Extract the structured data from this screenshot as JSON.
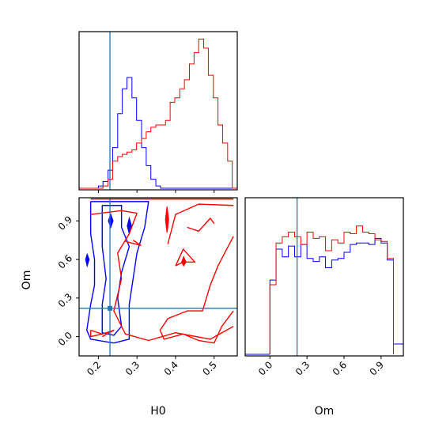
{
  "chart_data": {
    "type": "corner",
    "truth": {
      "H0": 0.23,
      "Om": 0.22
    },
    "series_colors": [
      "#0000ff",
      "#ff0000"
    ],
    "truth_color": "#1f77b4",
    "panels": [
      {
        "id": "hist_H0",
        "type": "step-histogram",
        "xlim": [
          0.15,
          0.56
        ],
        "x_ticks": [
          0.2,
          0.3,
          0.4,
          0.5
        ],
        "x_tick_labels_shown": false,
        "y_ticks_shown": false,
        "bin_edges": [
          0.15,
          0.163,
          0.175,
          0.188,
          0.2,
          0.212,
          0.225,
          0.237,
          0.25,
          0.262,
          0.274,
          0.287,
          0.299,
          0.312,
          0.324,
          0.336,
          0.349,
          0.361,
          0.374,
          0.386,
          0.398,
          0.411,
          0.423,
          0.436,
          0.448,
          0.46,
          0.473,
          0.485,
          0.498,
          0.51,
          0.522,
          0.535,
          0.547,
          0.56
        ],
        "series": [
          {
            "color": "#0000ff",
            "counts": [
              0,
              0,
              0,
              0,
              1,
              3,
              8,
              18,
              33,
              44,
              49,
              40,
              30,
              18,
              10,
              4,
              1,
              0,
              0,
              0,
              0,
              0,
              0,
              0,
              0,
              0,
              0,
              0,
              0,
              0,
              0,
              0,
              0
            ]
          },
          {
            "color": "#ff0000",
            "counts": [
              0,
              0,
              0,
              0,
              0,
              1,
              4,
              12,
              14,
              15,
              16,
              17,
              20,
              22,
              25,
              27,
              28,
              28,
              30,
              38,
              40,
              44,
              48,
              55,
              60,
              66,
              62,
              50,
              40,
              28,
              20,
              12,
              0
            ]
          }
        ]
      },
      {
        "id": "contour_H0_Om",
        "type": "contour",
        "xlabel": "H0",
        "ylabel": "Om",
        "xlim": [
          0.15,
          0.56
        ],
        "ylim": [
          -0.15,
          1.08
        ],
        "x_ticks": [
          0.2,
          0.3,
          0.4,
          0.5
        ],
        "x_tick_labels": [
          "0.2",
          "0.3",
          "0.4",
          "0.5"
        ],
        "y_ticks": [
          0.0,
          0.3,
          0.6,
          0.9
        ],
        "y_tick_labels": [
          "0.0",
          "0.3",
          "0.6",
          "0.9"
        ],
        "series": [
          {
            "color": "#0000ff",
            "contours": [
              [
                [
                  0.18,
                  1.05
                ],
                [
                  0.33,
                  1.05
                ],
                [
                  0.32,
                  0.85
                ],
                [
                  0.3,
                  0.65
                ],
                [
                  0.29,
                  0.45
                ],
                [
                  0.28,
                  0.25
                ],
                [
                  0.28,
                  -0.02
                ],
                [
                  0.24,
                  -0.05
                ],
                [
                  0.18,
                  -0.02
                ],
                [
                  0.17,
                  0.05
                ],
                [
                  0.18,
                  0.25
                ],
                [
                  0.19,
                  0.4
                ],
                [
                  0.19,
                  0.6
                ],
                [
                  0.18,
                  0.8
                ],
                [
                  0.18,
                  1.05
                ]
              ],
              [
                [
                  0.21,
                  1.02
                ],
                [
                  0.26,
                  1.02
                ],
                [
                  0.26,
                  0.85
                ],
                [
                  0.28,
                  0.7
                ],
                [
                  0.26,
                  0.5
                ],
                [
                  0.25,
                  0.3
                ],
                [
                  0.26,
                  0.08
                ],
                [
                  0.24,
                  0.01
                ],
                [
                  0.21,
                  0.03
                ],
                [
                  0.21,
                  0.25
                ],
                [
                  0.22,
                  0.45
                ],
                [
                  0.21,
                  0.7
                ],
                [
                  0.21,
                  1.02
                ]
              ]
            ],
            "blobs": [
              [
                [
                  0.232,
                  0.95
                ],
                [
                  0.238,
                  0.9
                ],
                [
                  0.232,
                  0.85
                ],
                [
                  0.226,
                  0.9
                ],
                [
                  0.232,
                  0.95
                ]
              ],
              [
                [
                  0.28,
                  0.92
                ],
                [
                  0.286,
                  0.86
                ],
                [
                  0.28,
                  0.8
                ],
                [
                  0.275,
                  0.86
                ],
                [
                  0.28,
                  0.92
                ]
              ],
              [
                [
                  0.171,
                  0.64
                ],
                [
                  0.176,
                  0.6
                ],
                [
                  0.171,
                  0.55
                ],
                [
                  0.167,
                  0.6
                ],
                [
                  0.171,
                  0.64
                ]
              ]
            ]
          },
          {
            "color": "#ff0000",
            "contours": [
              [
                [
                  0.18,
                  1.07
                ],
                [
                  0.55,
                  1.07
                ]
              ],
              [
                [
                  0.18,
                  0.95
                ],
                [
                  0.26,
                  0.98
                ],
                [
                  0.3,
                  0.96
                ],
                [
                  0.28,
                  0.8
                ],
                [
                  0.25,
                  0.65
                ],
                [
                  0.26,
                  0.45
                ],
                [
                  0.24,
                  0.2
                ],
                [
                  0.27,
                  0.02
                ],
                [
                  0.33,
                  -0.03
                ],
                [
                  0.4,
                  0.03
                ],
                [
                  0.49,
                  -0.02
                ],
                [
                  0.55,
                  0.08
                ]
              ],
              [
                [
                  0.55,
                  0.78
                ],
                [
                  0.51,
                  0.55
                ],
                [
                  0.49,
                  0.4
                ],
                [
                  0.47,
                  0.2
                ],
                [
                  0.43,
                  0.2
                ],
                [
                  0.38,
                  0.14
                ],
                [
                  0.36,
                  0.05
                ],
                [
                  0.37,
                  -0.02
                ],
                [
                  0.42,
                  0.02
                ],
                [
                  0.46,
                  -0.03
                ],
                [
                  0.5,
                  -0.05
                ],
                [
                  0.52,
                  0.08
                ],
                [
                  0.55,
                  0.2
                ]
              ],
              [
                [
                  0.38,
                  0.72
                ],
                [
                  0.4,
                  0.95
                ],
                [
                  0.46,
                  1.03
                ],
                [
                  0.55,
                  1.02
                ]
              ],
              [
                [
                  0.43,
                  0.85
                ],
                [
                  0.46,
                  0.82
                ],
                [
                  0.49,
                  0.92
                ],
                [
                  0.5,
                  0.88
                ]
              ],
              [
                [
                  0.4,
                  0.55
                ],
                [
                  0.42,
                  0.68
                ],
                [
                  0.45,
                  0.58
                ],
                [
                  0.42,
                  0.58
                ],
                [
                  0.4,
                  0.55
                ]
              ],
              [
                [
                  0.18,
                  0.05
                ],
                [
                  0.21,
                  0.02
                ],
                [
                  0.18,
                  0.0
                ],
                [
                  0.18,
                  0.05
                ]
              ],
              [
                [
                  0.21,
                  0.02
                ],
                [
                  0.24,
                  0.05
                ],
                [
                  0.21,
                  0.0
                ]
              ],
              [
                [
                  0.29,
                  0.75
                ],
                [
                  0.31,
                  0.71
                ],
                [
                  0.27,
                  0.74
                ]
              ]
            ],
            "blobs": [
              [
                [
                  0.378,
                  1.01
                ],
                [
                  0.382,
                  0.91
                ],
                [
                  0.378,
                  0.81
                ],
                [
                  0.374,
                  0.91
                ],
                [
                  0.378,
                  1.01
                ]
              ],
              [
                [
                  0.421,
                  0.62
                ],
                [
                  0.427,
                  0.58
                ],
                [
                  0.421,
                  0.55
                ],
                [
                  0.416,
                  0.58
                ],
                [
                  0.421,
                  0.62
                ]
              ]
            ]
          }
        ]
      },
      {
        "id": "hist_Om",
        "type": "step-histogram",
        "xlabel": "Om",
        "xlim": [
          -0.2,
          1.08
        ],
        "x_ticks": [
          0.0,
          0.3,
          0.6,
          0.9
        ],
        "x_tick_labels": [
          "0.0",
          "0.3",
          "0.6",
          "0.9"
        ],
        "y_ticks_shown": false,
        "bin_edges": [
          0.0,
          0.05,
          0.1,
          0.15,
          0.2,
          0.25,
          0.3,
          0.35,
          0.4,
          0.45,
          0.5,
          0.55,
          0.6,
          0.65,
          0.7,
          0.75,
          0.8,
          0.85,
          0.9,
          0.95,
          1.0
        ],
        "series": [
          {
            "color": "#0000ff",
            "counts": [
              48,
              68,
              63,
              70,
              63,
              71,
              62,
              60,
              63,
              56,
              61,
              62,
              66,
              71,
              72,
              72,
              71,
              75,
              72,
              61
            ]
          },
          {
            "color": "#ff0000",
            "counts": [
              45,
              72,
              76,
              79,
              76,
              71,
              79,
              75,
              76,
              67,
              74,
              72,
              79,
              78,
              83,
              79,
              78,
              74,
              73,
              62
            ]
          }
        ]
      }
    ]
  }
}
